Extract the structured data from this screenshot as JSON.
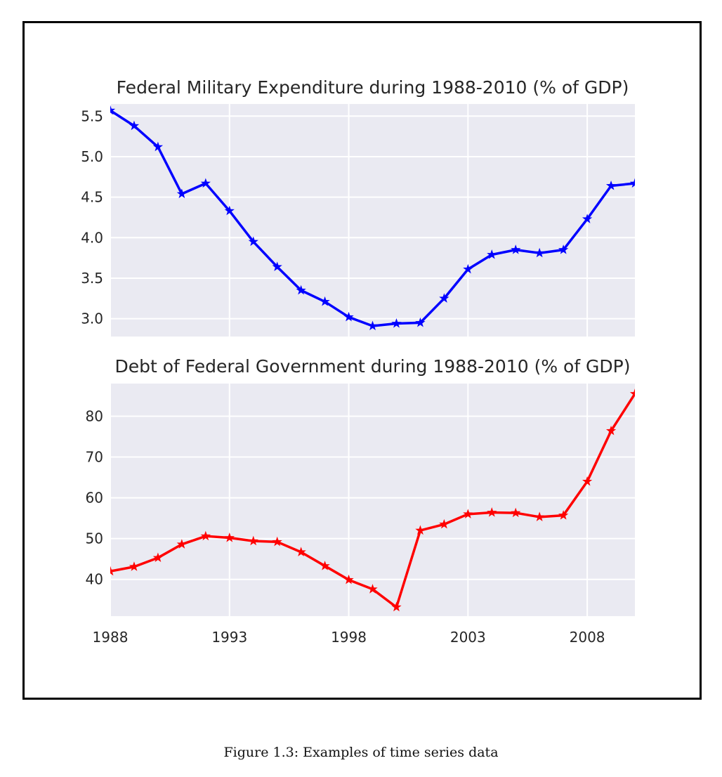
{
  "caption": "Figure 1.3: Examples of time series data",
  "style": {
    "plot_background": "#eaeaf2",
    "grid_color": "#ffffff",
    "text_color": "#262626"
  },
  "chart_data": [
    {
      "type": "line",
      "title": "Federal Military Expenditure during 1988-2010 (% of GDP)",
      "xlabel": "",
      "ylabel": "",
      "x": [
        1988,
        1989,
        1990,
        1991,
        1992,
        1993,
        1994,
        1995,
        1996,
        1997,
        1998,
        1999,
        2000,
        2001,
        2002,
        2003,
        2004,
        2005,
        2006,
        2007,
        2008,
        2009,
        2010
      ],
      "series": [
        {
          "color": "#0000ff",
          "marker": "star",
          "values": [
            5.57,
            5.38,
            5.12,
            4.54,
            4.67,
            4.33,
            3.95,
            3.64,
            3.35,
            3.21,
            3.02,
            2.91,
            2.94,
            2.95,
            3.25,
            3.61,
            3.79,
            3.85,
            3.81,
            3.85,
            4.23,
            4.64,
            4.67
          ]
        }
      ],
      "xlim": [
        1988,
        2010
      ],
      "ylim": [
        2.78,
        5.65
      ],
      "yticks": [
        3.0,
        3.5,
        4.0,
        4.5,
        5.0,
        5.5
      ],
      "ytick_labels": [
        "3.0",
        "3.5",
        "4.0",
        "4.5",
        "5.0",
        "5.5"
      ],
      "xticks": [
        1988,
        1993,
        1998,
        2003,
        2008
      ],
      "xtick_labels": [],
      "grid": true
    },
    {
      "type": "line",
      "title": "Debt of Federal Government during 1988-2010 (% of GDP)",
      "xlabel": "",
      "ylabel": "",
      "x": [
        1988,
        1989,
        1990,
        1991,
        1992,
        1993,
        1994,
        1995,
        1996,
        1997,
        1998,
        1999,
        2000,
        2001,
        2002,
        2003,
        2004,
        2005,
        2006,
        2007,
        2008,
        2009,
        2010
      ],
      "series": [
        {
          "color": "#ff0000",
          "marker": "star",
          "values": [
            42.0,
            43.1,
            45.3,
            48.6,
            50.6,
            50.2,
            49.4,
            49.2,
            46.7,
            43.3,
            39.9,
            37.6,
            33.2,
            52.0,
            53.5,
            56.0,
            56.4,
            56.3,
            55.3,
            55.7,
            64.0,
            76.4,
            85.5
          ]
        }
      ],
      "xlim": [
        1988,
        2010
      ],
      "ylim": [
        31,
        88
      ],
      "yticks": [
        40,
        50,
        60,
        70,
        80
      ],
      "ytick_labels": [
        "40",
        "50",
        "60",
        "70",
        "80"
      ],
      "xticks": [
        1988,
        1993,
        1998,
        2003,
        2008
      ],
      "xtick_labels": [
        "1988",
        "1993",
        "1998",
        "2003",
        "2008"
      ],
      "grid": true
    }
  ]
}
